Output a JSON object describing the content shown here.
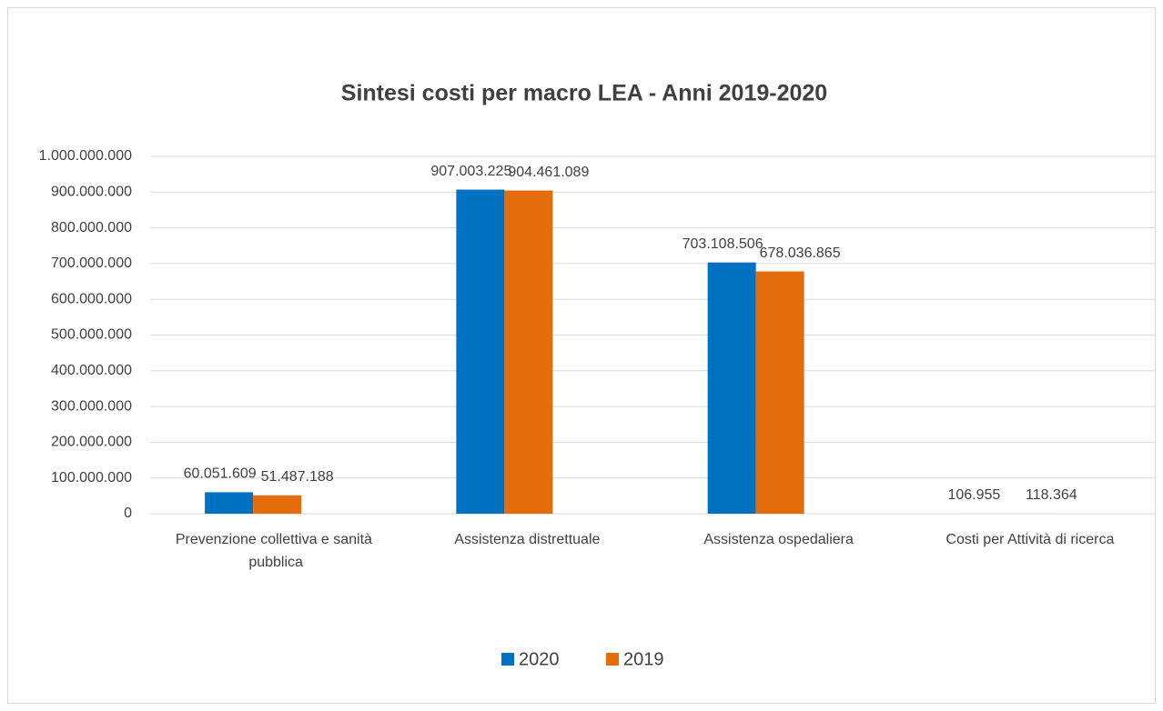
{
  "chart_data": {
    "type": "bar",
    "title": "Sintesi costi per macro LEA - Anni 2019-2020",
    "categories": [
      "Prevenzione collettiva e sanità pubblica",
      "Assistenza distrettuale",
      "Assistenza ospedaliera",
      "Costi per Attività di ricerca"
    ],
    "series": [
      {
        "name": "2020",
        "color": "#0070c0",
        "values": [
          60051609,
          907003225,
          703108506,
          106955
        ],
        "value_labels": [
          "60.051.609",
          "907.003.225",
          "703.108.506",
          "106.955"
        ]
      },
      {
        "name": "2019",
        "color": "#e46c0a",
        "values": [
          51487188,
          904461089,
          678036865,
          118364
        ],
        "value_labels": [
          "51.487.188",
          "904.461.089",
          "678.036.865",
          "118.364"
        ]
      }
    ],
    "ylim": [
      0,
      1000000000
    ],
    "yticks": [
      0,
      {
        "value": 100000000,
        "label": "100.000.000"
      },
      {
        "value": 200000000,
        "label": "200.000.000"
      },
      {
        "value": 300000000,
        "label": "300.000.000"
      },
      {
        "value": 400000000,
        "label": "400.000.000"
      },
      {
        "value": 500000000,
        "label": "500.000.000"
      },
      {
        "value": 600000000,
        "label": "600.000.000"
      },
      {
        "value": 700000000,
        "label": "700.000.000"
      },
      {
        "value": 800000000,
        "label": "800.000.000"
      },
      {
        "value": 900000000,
        "label": "900.000.000"
      },
      {
        "value": 1000000000,
        "label": "1.000.000.000"
      }
    ],
    "grid": true,
    "legend": "bottom"
  }
}
